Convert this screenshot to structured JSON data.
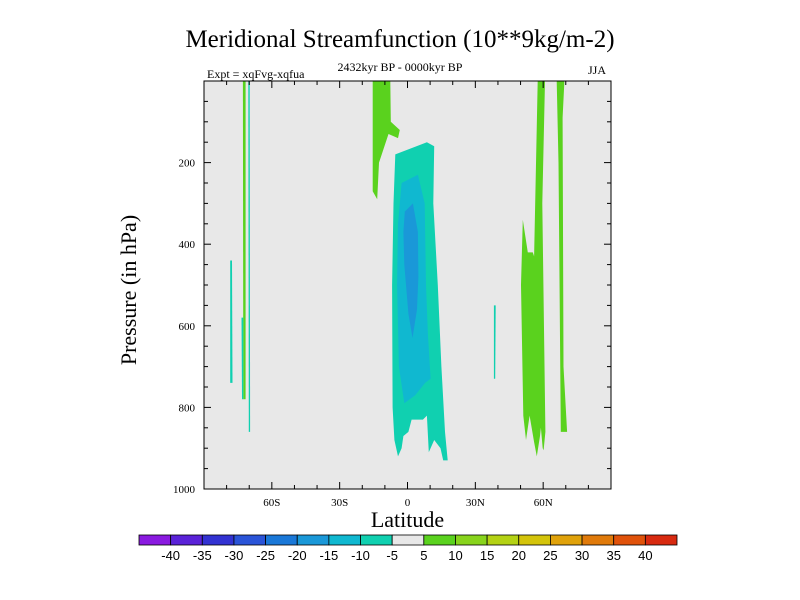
{
  "chart_data": {
    "type": "heatmap",
    "title": "Meridional Streamfunction (10**9kg/m-2)",
    "subtitle_left": "Expt = xqFvg-xqfua",
    "subtitle_center": "2432kyr BP - 0000kyr BP",
    "subtitle_right": "JJA",
    "xlabel": "Latitude",
    "ylabel": "Pressure (in hPa)",
    "xlim": [
      -90,
      90
    ],
    "ylim": [
      1000,
      0
    ],
    "x_ticks": [
      {
        "value": -60,
        "label": "60S"
      },
      {
        "value": -30,
        "label": "30S"
      },
      {
        "value": 0,
        "label": "0"
      },
      {
        "value": 30,
        "label": "30N"
      },
      {
        "value": 60,
        "label": "60N"
      }
    ],
    "y_ticks": [
      {
        "value": 200,
        "label": "200"
      },
      {
        "value": 400,
        "label": "400"
      },
      {
        "value": 600,
        "label": "600"
      },
      {
        "value": 800,
        "label": "800"
      },
      {
        "value": 1000,
        "label": "1000"
      }
    ],
    "levels": [
      -40,
      -35,
      -30,
      -25,
      -20,
      -15,
      -10,
      -5,
      5,
      10,
      15,
      20,
      25,
      30,
      35,
      40
    ],
    "colorbar_colors": [
      "#8a1ae0",
      "#5a22d8",
      "#3232d2",
      "#2a54d8",
      "#1a78d8",
      "#1a98d8",
      "#10b8d0",
      "#10d0b0",
      "#e8e8e8",
      "#5ad21e",
      "#88d41c",
      "#b4d214",
      "#d4c40a",
      "#e0a20a",
      "#e07a0a",
      "#e0520a",
      "#d82a10"
    ],
    "regions": [
      {
        "name": "green-strip-70S",
        "level": "5-10",
        "color": "#5ad21e",
        "points": [
          [
            -72.8,
            0
          ],
          [
            -71.6,
            0
          ],
          [
            -71.6,
            780
          ],
          [
            -72.6,
            780
          ]
        ]
      },
      {
        "name": "cyan-strip-69S",
        "level": "-10--5",
        "color": "#10d0b0",
        "points": [
          [
            -70.4,
            0
          ],
          [
            -69.8,
            0
          ],
          [
            -69.6,
            860
          ],
          [
            -70.2,
            860
          ]
        ]
      },
      {
        "name": "cyan-blob-78S",
        "level": "-10--5",
        "color": "#10d0b0",
        "points": [
          [
            -78.4,
            440
          ],
          [
            -77.6,
            440
          ],
          [
            -77.4,
            740
          ],
          [
            -78.4,
            740
          ]
        ]
      },
      {
        "name": "cyan-blob-73S",
        "level": "-10--5",
        "color": "#10d0b0",
        "points": [
          [
            -73.4,
            580
          ],
          [
            -72.6,
            580
          ],
          [
            -72.6,
            780
          ],
          [
            -73.2,
            780
          ]
        ]
      },
      {
        "name": "green-cap-15S",
        "level": "5-10",
        "color": "#5ad21e",
        "points": [
          [
            -15.4,
            0
          ],
          [
            -7.6,
            0
          ],
          [
            -7.4,
            100
          ],
          [
            -3.4,
            120
          ],
          [
            -4.2,
            140
          ],
          [
            -8.4,
            130
          ],
          [
            -12.6,
            200
          ],
          [
            -13.4,
            290
          ],
          [
            -15.4,
            270
          ]
        ]
      },
      {
        "name": "cyan-outer-equator",
        "level": "-10--5",
        "color": "#10d0b0",
        "points": [
          [
            -5.4,
            180
          ],
          [
            8.6,
            150
          ],
          [
            11.8,
            160
          ],
          [
            11.4,
            300
          ],
          [
            13.4,
            500
          ],
          [
            15.0,
            700
          ],
          [
            16.6,
            860
          ],
          [
            17.8,
            930
          ],
          [
            15.8,
            930
          ],
          [
            14.6,
            900
          ],
          [
            11.8,
            880
          ],
          [
            9.4,
            910
          ],
          [
            8.6,
            820
          ],
          [
            6.8,
            830
          ],
          [
            1.8,
            830
          ],
          [
            0.4,
            860
          ],
          [
            -1.8,
            870
          ],
          [
            -2.6,
            900
          ],
          [
            -4.2,
            920
          ],
          [
            -5.8,
            880
          ],
          [
            -6.6,
            800
          ],
          [
            -6.8,
            500
          ],
          [
            -6.2,
            300
          ]
        ]
      },
      {
        "name": "blue-mid-equator",
        "level": "-15--10",
        "color": "#10b8d0",
        "points": [
          [
            -2.6,
            250
          ],
          [
            4.6,
            230
          ],
          [
            7.6,
            300
          ],
          [
            8.2,
            500
          ],
          [
            9.0,
            620
          ],
          [
            10.2,
            730
          ],
          [
            7.8,
            740
          ],
          [
            3.4,
            770
          ],
          [
            -1.4,
            790
          ],
          [
            -3.8,
            700
          ],
          [
            -4.6,
            500
          ],
          [
            -4.2,
            350
          ]
        ]
      },
      {
        "name": "blue-inner-equator",
        "level": "-20--15",
        "color": "#1a98d8",
        "points": [
          [
            -1.2,
            320
          ],
          [
            2.4,
            300
          ],
          [
            4.6,
            370
          ],
          [
            4.8,
            480
          ],
          [
            4.2,
            560
          ],
          [
            2.2,
            630
          ],
          [
            0.4,
            570
          ],
          [
            -1.4,
            450
          ],
          [
            -1.8,
            370
          ]
        ]
      },
      {
        "name": "cyan-blob-38N",
        "level": "-10--5",
        "color": "#10d0b0",
        "points": [
          [
            38.2,
            550
          ],
          [
            39.0,
            550
          ],
          [
            38.8,
            730
          ],
          [
            38.2,
            730
          ]
        ]
      },
      {
        "name": "green-band-55N",
        "level": "5-10",
        "color": "#5ad21e",
        "points": [
          [
            51.0,
            340
          ],
          [
            53.2,
            420
          ],
          [
            55.4,
            420
          ],
          [
            56.0,
            430
          ],
          [
            57.6,
            0
          ],
          [
            60.8,
            0
          ],
          [
            59.6,
            300
          ],
          [
            61.0,
            860
          ],
          [
            60.2,
            905
          ],
          [
            59.8,
            900
          ],
          [
            59.0,
            850
          ],
          [
            58.6,
            870
          ],
          [
            57.2,
            920
          ],
          [
            56.0,
            885
          ],
          [
            54.0,
            820
          ],
          [
            52.4,
            880
          ],
          [
            51.2,
            820
          ],
          [
            50.2,
            500
          ]
        ]
      },
      {
        "name": "green-strip-67N",
        "level": "5-10",
        "color": "#5ad21e",
        "points": [
          [
            66.0,
            0
          ],
          [
            69.4,
            0
          ],
          [
            68.6,
            90
          ],
          [
            69.0,
            700
          ],
          [
            70.6,
            860
          ],
          [
            67.8,
            860
          ],
          [
            66.8,
            200
          ]
        ]
      },
      {
        "name": "green-thread-59N",
        "level": "5-10",
        "color": "#5ad21e",
        "points": [
          [
            59.2,
            0
          ],
          [
            59.6,
            0
          ],
          [
            59.6,
            40
          ],
          [
            59.2,
            40
          ]
        ]
      }
    ]
  }
}
